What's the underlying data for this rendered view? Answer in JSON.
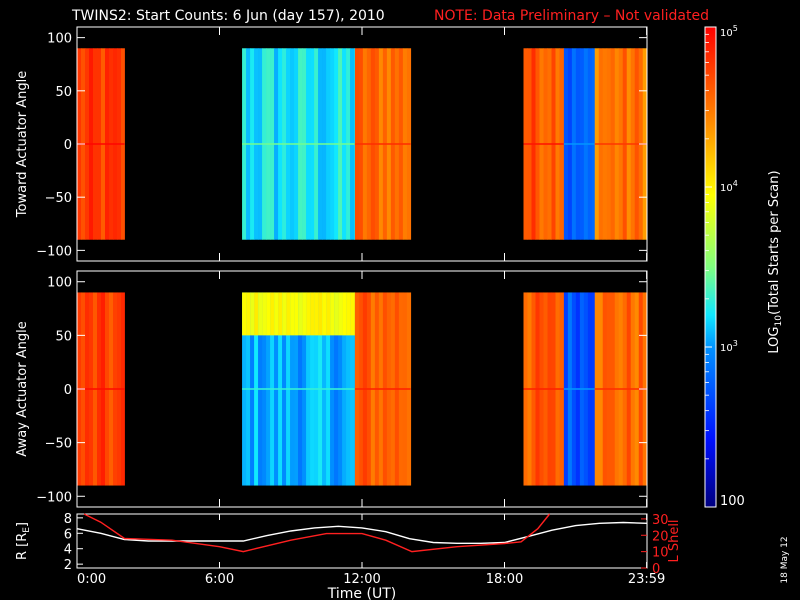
{
  "header": {
    "title": "TWINS2: Start Counts:  6 Jun (day 157), 2010",
    "note": "NOTE: Data Preliminary – Not validated",
    "title_color": "#ffffff",
    "note_color": "#ff2020"
  },
  "footer": {
    "date_stamp": "18 May 12"
  },
  "chart_data": [
    {
      "type": "heatmap",
      "title": "",
      "xlabel": "",
      "ylabel": "Toward Actuator Angle",
      "xlim": [
        0,
        24
      ],
      "ylim": [
        -110,
        110
      ],
      "yticks": [
        100,
        50,
        0,
        -50,
        -100
      ],
      "ytick_labels": [
        "100",
        "50",
        "0",
        "−50",
        "−100"
      ],
      "colorscale": "log10 rainbow (blue-cyan-yellow-red)",
      "data_intervals_hours": [
        [
          0.0,
          2.0
        ],
        [
          6.95,
          14.05
        ],
        [
          18.8,
          24.0
        ]
      ],
      "angle_range": [
        -90,
        90
      ],
      "profile": [
        {
          "hours": [
            0.0,
            2.0
          ],
          "log_level": 4.72
        },
        {
          "hours": [
            6.95,
            11.7
          ],
          "log_level": 3.2
        },
        {
          "hours": [
            11.7,
            14.05
          ],
          "log_level": 4.55
        },
        {
          "hours": [
            18.8,
            20.5
          ],
          "log_level": 4.65
        },
        {
          "hours": [
            20.5,
            21.8
          ],
          "log_level": 2.75
        },
        {
          "hours": [
            21.8,
            24.0
          ],
          "log_level": 4.5
        }
      ]
    },
    {
      "type": "heatmap",
      "title": "",
      "xlabel": "",
      "ylabel": "Away Actuator Angle",
      "xlim": [
        0,
        24
      ],
      "ylim": [
        -110,
        110
      ],
      "yticks": [
        100,
        50,
        0,
        -50,
        -100
      ],
      "ytick_labels": [
        "100",
        "50",
        "0",
        "−50",
        "−100"
      ],
      "colorscale": "log10 rainbow (blue-cyan-yellow-red)",
      "data_intervals_hours": [
        [
          0.0,
          2.0
        ],
        [
          6.95,
          14.05
        ],
        [
          18.8,
          24.0
        ]
      ],
      "angle_range": [
        -90,
        90
      ],
      "profile": [
        {
          "hours": [
            0.0,
            2.0
          ],
          "log_level": 4.7
        },
        {
          "hours": [
            6.95,
            11.7
          ],
          "log_level": 3.05,
          "high_angle_band": {
            "angles": [
              50,
              90
            ],
            "log_level": 3.95
          }
        },
        {
          "hours": [
            11.7,
            14.05
          ],
          "log_level": 4.6
        },
        {
          "hours": [
            18.8,
            20.5
          ],
          "log_level": 4.6
        },
        {
          "hours": [
            20.5,
            21.8
          ],
          "log_level": 2.75
        },
        {
          "hours": [
            21.8,
            24.0
          ],
          "log_level": 4.55
        }
      ]
    },
    {
      "type": "line",
      "title": "",
      "xlabel": "Time (UT)",
      "ylabel": "R [Rₑ]",
      "ylabel_main": "R [R",
      "ylabel_sub": "E",
      "ylabel_end": "]",
      "y2label": "L Shell",
      "xlim": [
        0,
        24
      ],
      "ylim": [
        1.5,
        8.5
      ],
      "y2lim": [
        0,
        33
      ],
      "xticks": [
        0,
        6,
        12,
        18,
        23.983
      ],
      "xtick_labels": [
        "0:00",
        "6:00",
        "12:00",
        "18:00",
        "23:59"
      ],
      "yticks": [
        2,
        4,
        6,
        8
      ],
      "ytick_labels": [
        "2",
        "4",
        "6",
        "8"
      ],
      "y2ticks": [
        0,
        10,
        20,
        30
      ],
      "y2tick_labels": [
        "0",
        "10",
        "20",
        "30"
      ],
      "series": [
        {
          "axis": "left",
          "color": "#ffffff",
          "x": [
            0,
            1,
            2,
            3,
            4,
            5,
            6,
            7,
            8,
            9,
            10,
            11,
            12,
            13,
            14,
            15,
            16,
            17,
            18,
            19,
            20,
            21,
            22,
            23,
            24
          ],
          "y": [
            6.6,
            6.0,
            5.2,
            5.0,
            5.0,
            5.0,
            5.0,
            5.0,
            5.7,
            6.3,
            6.7,
            6.9,
            6.7,
            6.2,
            5.3,
            4.8,
            4.7,
            4.7,
            4.8,
            5.6,
            6.4,
            7.0,
            7.3,
            7.4,
            7.3
          ]
        },
        {
          "axis": "right",
          "color": "#ff2020",
          "x": [
            0.3,
            1.0,
            2.0,
            4.0,
            6.0,
            7.0,
            9.0,
            10.5,
            12.0,
            13.0,
            14.1,
            16.0,
            18.0,
            18.7,
            19.4,
            19.9
          ],
          "y": [
            33,
            28,
            18,
            17,
            13,
            10,
            17,
            21,
            21,
            17,
            10,
            13,
            15,
            16,
            24,
            33
          ]
        }
      ]
    }
  ],
  "colorbar": {
    "label": "LOG₁₀(Total Starts per Scan)",
    "label_main": "LOG",
    "label_sub": "10",
    "label_end": "(Total Starts per Scan)",
    "log_min": 2,
    "log_max": 5,
    "tick_labels": [
      {
        "value": 5,
        "base": "10",
        "exp": "5"
      },
      {
        "value": 4,
        "base": "10",
        "exp": "4"
      },
      {
        "value": 3,
        "base": "10",
        "exp": "3"
      },
      {
        "value": 2,
        "base": "100",
        "exp": ""
      }
    ]
  }
}
